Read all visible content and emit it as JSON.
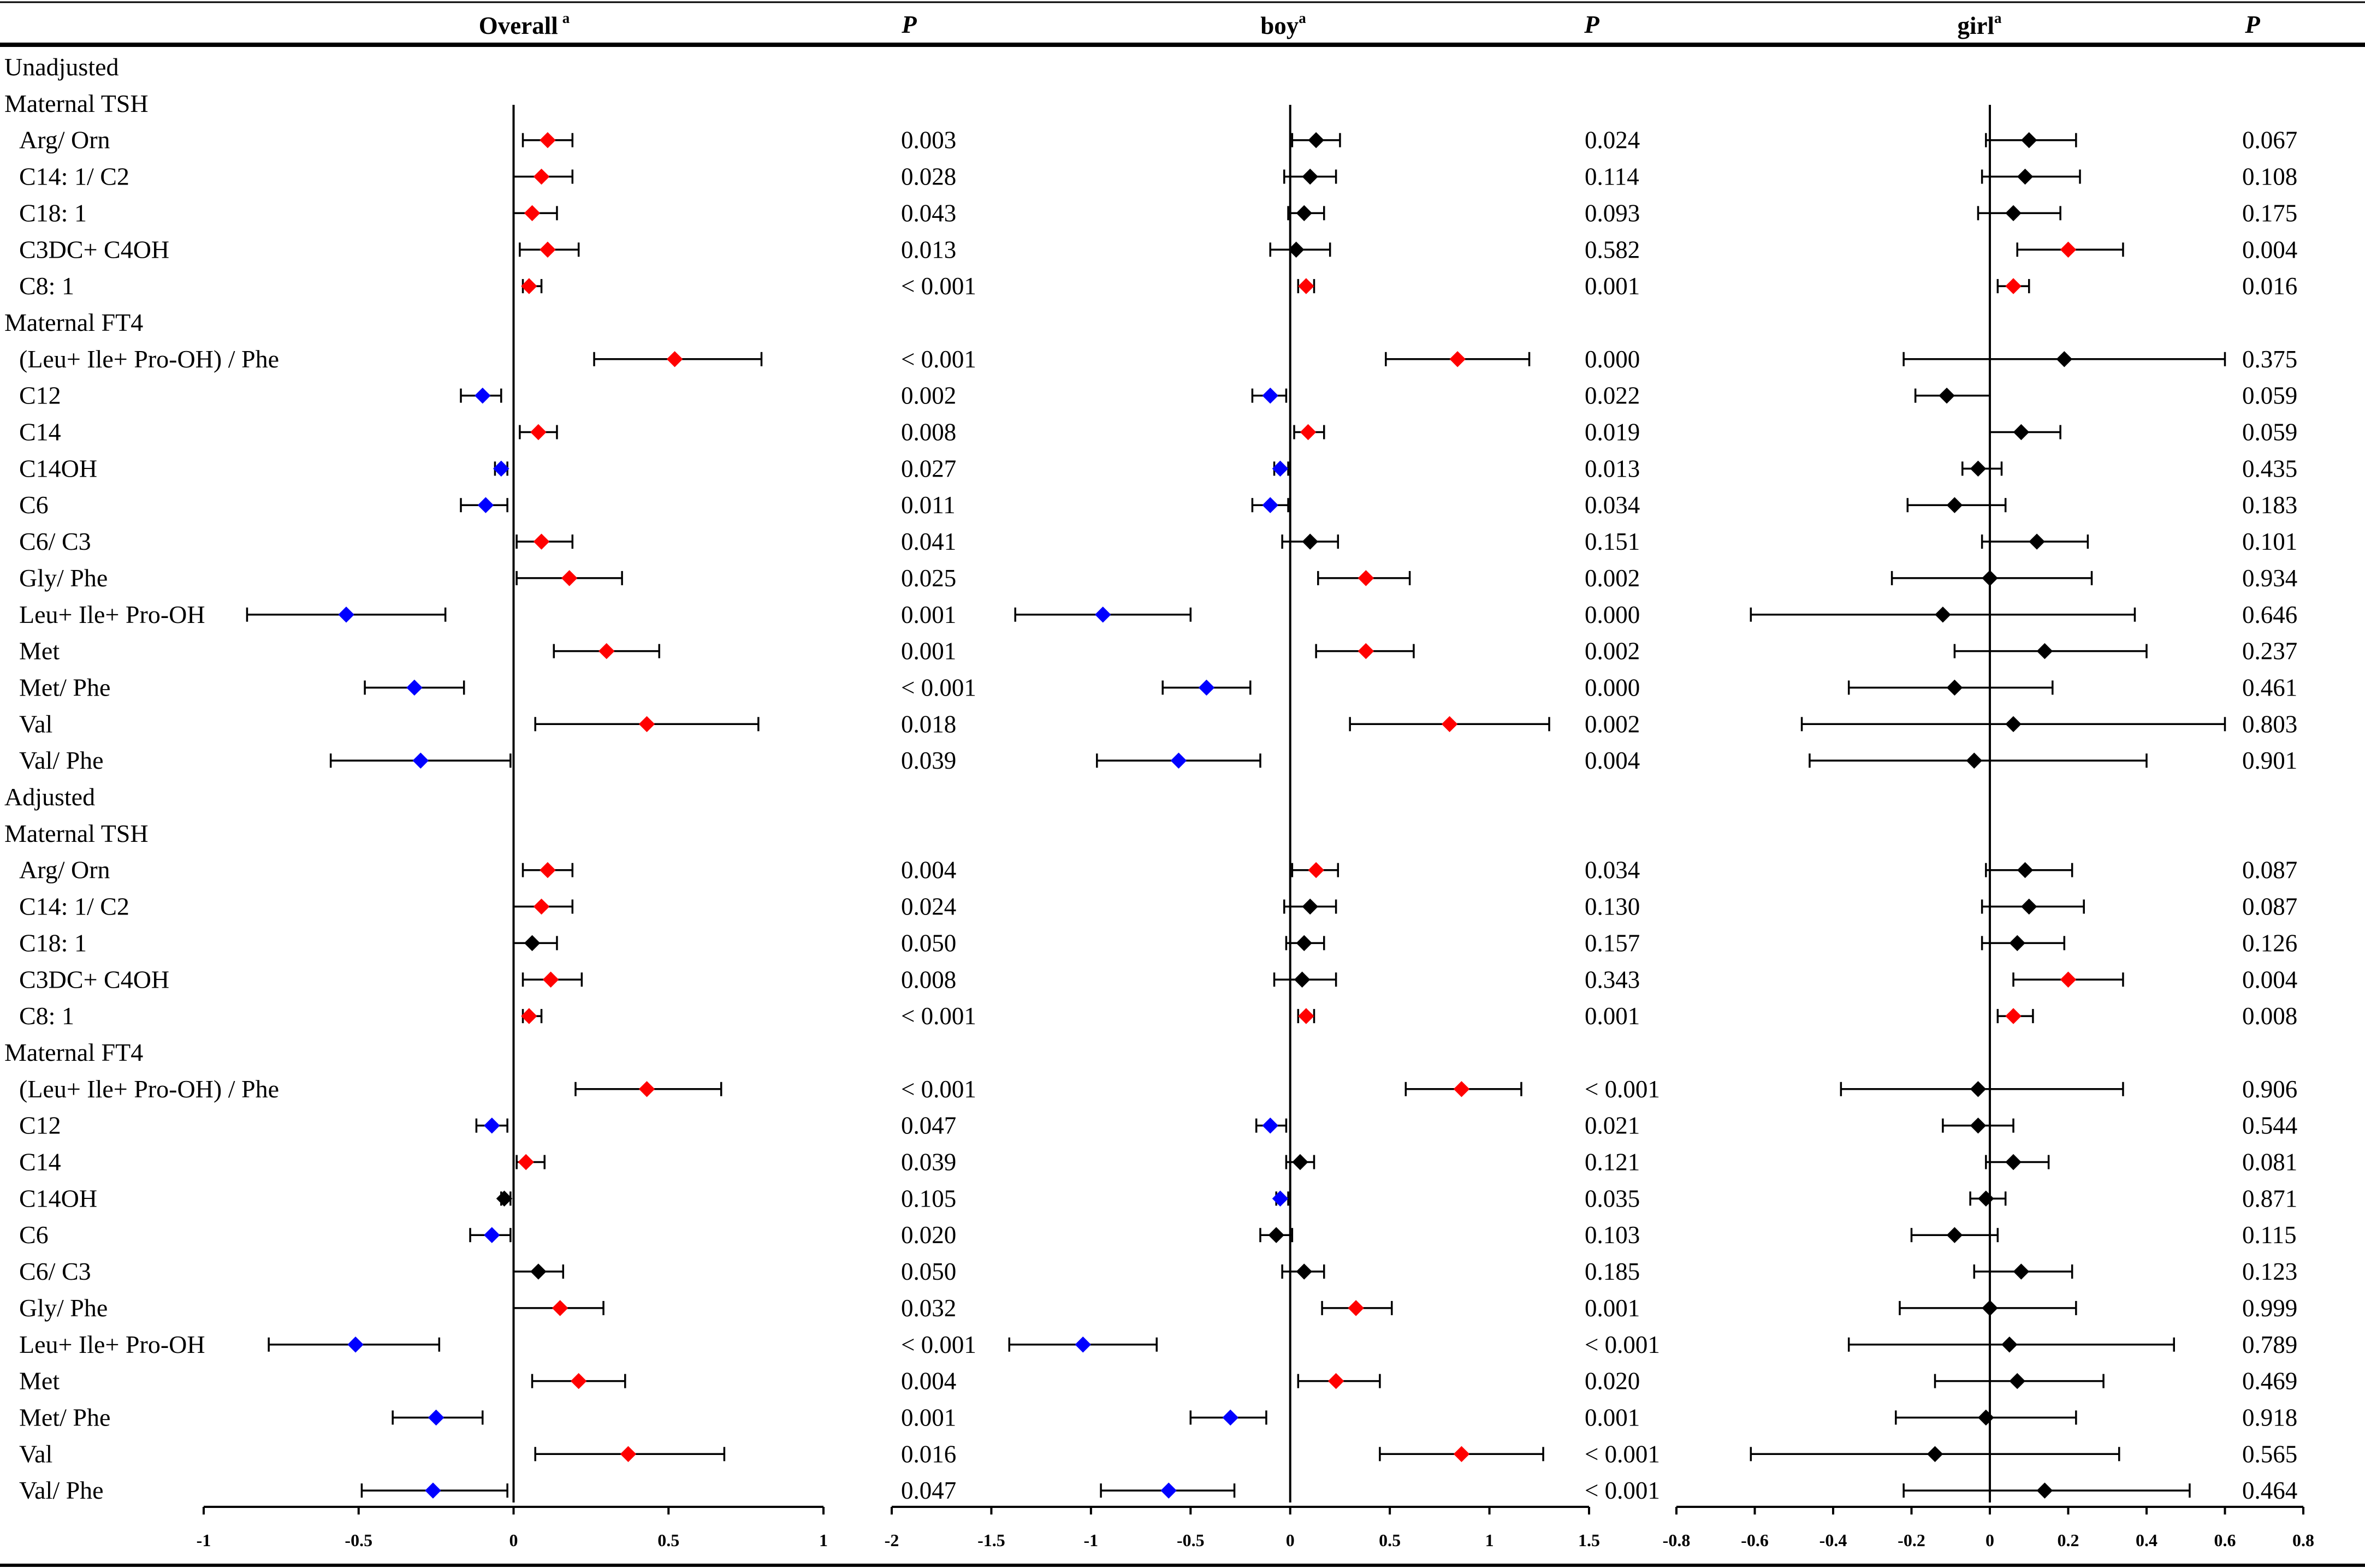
{
  "chart_data": {
    "type": "forest",
    "headers": {
      "overall": "Overall",
      "boy": "boy",
      "girl": "girl",
      "superscript": "a",
      "p": "P"
    },
    "colors": {
      "positive": "#ff0000",
      "negative": "#0000ff",
      "nonsignificant": "#000000"
    },
    "panels": [
      {
        "name": "Overall",
        "xlim": [
          -1,
          1
        ],
        "ticks": [
          -1,
          -0.5,
          0,
          0.5,
          1
        ],
        "tick_labels": [
          "-1",
          "-0.5",
          "0",
          "0.5",
          "1"
        ]
      },
      {
        "name": "boy",
        "xlim": [
          -2,
          1.5
        ],
        "ticks": [
          -2,
          -1.5,
          -1,
          -0.5,
          0,
          0.5,
          1,
          1.5
        ],
        "tick_labels": [
          "-2",
          "-1.5",
          "-1",
          "-0.5",
          "0",
          "0.5",
          "1",
          "1.5"
        ]
      },
      {
        "name": "girl",
        "xlim": [
          -0.8,
          0.8
        ],
        "ticks": [
          -0.8,
          -0.6,
          -0.4,
          -0.2,
          0,
          0.2,
          0.4,
          0.6,
          0.8
        ],
        "tick_labels": [
          "-0.8",
          "-0.6",
          "-0.4",
          "-0.2",
          "0",
          "0.2",
          "0.4",
          "0.6",
          "0.8"
        ]
      }
    ],
    "rows": [
      {
        "label": "Unadjusted",
        "kind": "section"
      },
      {
        "label": "Maternal TSH",
        "kind": "group"
      },
      {
        "label": "Arg/ Orn",
        "kind": "item",
        "overall": [
          0.11,
          0.03,
          0.19,
          "r"
        ],
        "p_overall": "0.003",
        "boy": [
          0.13,
          0.01,
          0.25,
          "k"
        ],
        "p_boy": "0.024",
        "girl": [
          0.1,
          -0.01,
          0.22,
          "k"
        ],
        "p_girl": "0.067"
      },
      {
        "label": "C14: 1/ C2",
        "kind": "item",
        "overall": [
          0.09,
          0.0,
          0.19,
          "r"
        ],
        "p_overall": "0.028",
        "boy": [
          0.1,
          -0.03,
          0.23,
          "k"
        ],
        "p_boy": "0.114",
        "girl": [
          0.09,
          -0.02,
          0.23,
          "k"
        ],
        "p_girl": "0.108"
      },
      {
        "label": "C18: 1",
        "kind": "item",
        "overall": [
          0.06,
          0.0,
          0.14,
          "r"
        ],
        "p_overall": "0.043",
        "boy": [
          0.07,
          -0.01,
          0.17,
          "k"
        ],
        "p_boy": "0.093",
        "girl": [
          0.06,
          -0.03,
          0.18,
          "k"
        ],
        "p_girl": "0.175"
      },
      {
        "label": "C3DC+ C4OH",
        "kind": "item",
        "overall": [
          0.11,
          0.02,
          0.21,
          "r"
        ],
        "p_overall": "0.013",
        "boy": [
          0.03,
          -0.1,
          0.2,
          "k"
        ],
        "p_boy": "0.582",
        "girl": [
          0.2,
          0.07,
          0.34,
          "r"
        ],
        "p_girl": "0.004"
      },
      {
        "label": "C8: 1",
        "kind": "item",
        "overall": [
          0.05,
          0.03,
          0.09,
          "r"
        ],
        "p_overall": "< 0.001",
        "boy": [
          0.08,
          0.04,
          0.12,
          "r"
        ],
        "p_boy": "0.001",
        "girl": [
          0.06,
          0.02,
          0.1,
          "r"
        ],
        "p_girl": "0.016"
      },
      {
        "label": "Maternal FT4",
        "kind": "group"
      },
      {
        "label": "(Leu+ Ile+ Pro-OH) / Phe",
        "kind": "item",
        "overall": [
          0.52,
          0.26,
          0.8,
          "r"
        ],
        "p_overall": "< 0.001",
        "boy": [
          0.84,
          0.48,
          1.2,
          "r"
        ],
        "p_boy": "0.000",
        "girl": [
          0.19,
          -0.22,
          0.6,
          "k"
        ],
        "p_girl": "0.375"
      },
      {
        "label": "C12",
        "kind": "item",
        "overall": [
          -0.1,
          -0.17,
          -0.04,
          "b"
        ],
        "p_overall": "0.002",
        "boy": [
          -0.1,
          -0.19,
          -0.02,
          "b"
        ],
        "p_boy": "0.022",
        "girl": [
          -0.11,
          -0.19,
          0.0,
          "k"
        ],
        "p_girl": "0.059"
      },
      {
        "label": "C14",
        "kind": "item",
        "overall": [
          0.08,
          0.02,
          0.14,
          "r"
        ],
        "p_overall": "0.008",
        "boy": [
          0.09,
          0.02,
          0.17,
          "r"
        ],
        "p_boy": "0.019",
        "girl": [
          0.08,
          0.0,
          0.18,
          "k"
        ],
        "p_girl": "0.059"
      },
      {
        "label": "C14OH",
        "kind": "item",
        "overall": [
          -0.04,
          -0.06,
          -0.02,
          "b"
        ],
        "p_overall": "0.027",
        "boy": [
          -0.05,
          -0.08,
          -0.01,
          "b"
        ],
        "p_boy": "0.013",
        "girl": [
          -0.03,
          -0.07,
          0.03,
          "k"
        ],
        "p_girl": "0.435"
      },
      {
        "label": "C6",
        "kind": "item",
        "overall": [
          -0.09,
          -0.17,
          -0.02,
          "b"
        ],
        "p_overall": "0.011",
        "boy": [
          -0.1,
          -0.19,
          -0.01,
          "b"
        ],
        "p_boy": "0.034",
        "girl": [
          -0.09,
          -0.21,
          0.04,
          "k"
        ],
        "p_girl": "0.183"
      },
      {
        "label": "C6/ C3",
        "kind": "item",
        "overall": [
          0.09,
          0.01,
          0.19,
          "r"
        ],
        "p_overall": "0.041",
        "boy": [
          0.1,
          -0.04,
          0.24,
          "k"
        ],
        "p_boy": "0.151",
        "girl": [
          0.12,
          -0.02,
          0.25,
          "k"
        ],
        "p_girl": "0.101"
      },
      {
        "label": "Gly/ Phe",
        "kind": "item",
        "overall": [
          0.18,
          0.01,
          0.35,
          "r"
        ],
        "p_overall": "0.025",
        "boy": [
          0.38,
          0.14,
          0.6,
          "r"
        ],
        "p_boy": "0.002",
        "girl": [
          0.0,
          -0.25,
          0.26,
          "k"
        ],
        "p_girl": "0.934"
      },
      {
        "label": "Leu+ Ile+ Pro-OH",
        "kind": "item",
        "overall": [
          -0.54,
          -0.86,
          -0.22,
          "b"
        ],
        "p_overall": "0.001",
        "boy": [
          -0.94,
          -1.38,
          -0.5,
          "b"
        ],
        "p_boy": "0.000",
        "girl": [
          -0.12,
          -0.61,
          0.37,
          "k"
        ],
        "p_girl": "0.646"
      },
      {
        "label": "Met",
        "kind": "item",
        "overall": [
          0.3,
          0.13,
          0.47,
          "r"
        ],
        "p_overall": "0.001",
        "boy": [
          0.38,
          0.13,
          0.62,
          "r"
        ],
        "p_boy": "0.002",
        "girl": [
          0.14,
          -0.09,
          0.4,
          "k"
        ],
        "p_girl": "0.237"
      },
      {
        "label": "Met/ Phe",
        "kind": "item",
        "overall": [
          -0.32,
          -0.48,
          -0.16,
          "b"
        ],
        "p_overall": "< 0.001",
        "boy": [
          -0.42,
          -0.64,
          -0.2,
          "b"
        ],
        "p_boy": "0.000",
        "girl": [
          -0.09,
          -0.36,
          0.16,
          "k"
        ],
        "p_girl": "0.461"
      },
      {
        "label": "Val",
        "kind": "item",
        "overall": [
          0.43,
          0.07,
          0.79,
          "r"
        ],
        "p_overall": "0.018",
        "boy": [
          0.8,
          0.3,
          1.3,
          "r"
        ],
        "p_boy": "0.002",
        "girl": [
          0.06,
          -0.48,
          0.6,
          "k"
        ],
        "p_girl": "0.803"
      },
      {
        "label": "Val/ Phe",
        "kind": "item",
        "overall": [
          -0.3,
          -0.59,
          -0.01,
          "b"
        ],
        "p_overall": "0.039",
        "boy": [
          -0.56,
          -0.97,
          -0.15,
          "b"
        ],
        "p_boy": "0.004",
        "girl": [
          -0.04,
          -0.46,
          0.4,
          "k"
        ],
        "p_girl": "0.901"
      },
      {
        "label": "Adjusted",
        "kind": "section"
      },
      {
        "label": "Maternal TSH",
        "kind": "group"
      },
      {
        "label": "Arg/ Orn",
        "kind": "item",
        "overall": [
          0.11,
          0.03,
          0.19,
          "r"
        ],
        "p_overall": "0.004",
        "boy": [
          0.13,
          0.01,
          0.24,
          "r"
        ],
        "p_boy": "0.034",
        "girl": [
          0.09,
          -0.01,
          0.21,
          "k"
        ],
        "p_girl": "0.087"
      },
      {
        "label": "C14: 1/ C2",
        "kind": "item",
        "overall": [
          0.09,
          0.0,
          0.19,
          "r"
        ],
        "p_overall": "0.024",
        "boy": [
          0.1,
          -0.03,
          0.23,
          "k"
        ],
        "p_boy": "0.130",
        "girl": [
          0.1,
          -0.02,
          0.24,
          "k"
        ],
        "p_girl": "0.087"
      },
      {
        "label": "C18: 1",
        "kind": "item",
        "overall": [
          0.06,
          0.0,
          0.14,
          "k"
        ],
        "p_overall": "0.050",
        "boy": [
          0.07,
          -0.02,
          0.17,
          "k"
        ],
        "p_boy": "0.157",
        "girl": [
          0.07,
          -0.02,
          0.19,
          "k"
        ],
        "p_girl": "0.126"
      },
      {
        "label": "C3DC+ C4OH",
        "kind": "item",
        "overall": [
          0.12,
          0.03,
          0.22,
          "r"
        ],
        "p_overall": "0.008",
        "boy": [
          0.06,
          -0.08,
          0.23,
          "k"
        ],
        "p_boy": "0.343",
        "girl": [
          0.2,
          0.06,
          0.34,
          "r"
        ],
        "p_girl": "0.004"
      },
      {
        "label": "C8: 1",
        "kind": "item",
        "overall": [
          0.05,
          0.03,
          0.09,
          "r"
        ],
        "p_overall": "< 0.001",
        "boy": [
          0.08,
          0.04,
          0.12,
          "r"
        ],
        "p_boy": "0.001",
        "girl": [
          0.06,
          0.02,
          0.11,
          "r"
        ],
        "p_girl": "0.008"
      },
      {
        "label": "Maternal FT4",
        "kind": "group"
      },
      {
        "label": "(Leu+ Ile+ Pro-OH) / Phe",
        "kind": "item",
        "overall": [
          0.43,
          0.2,
          0.67,
          "r"
        ],
        "p_overall": "< 0.001",
        "boy": [
          0.86,
          0.58,
          1.16,
          "r"
        ],
        "p_boy": "< 0.001",
        "girl": [
          -0.03,
          -0.38,
          0.34,
          "k"
        ],
        "p_girl": "0.906"
      },
      {
        "label": "C12",
        "kind": "item",
        "overall": [
          -0.07,
          -0.12,
          -0.02,
          "b"
        ],
        "p_overall": "0.047",
        "boy": [
          -0.1,
          -0.17,
          -0.02,
          "b"
        ],
        "p_boy": "0.021",
        "girl": [
          -0.03,
          -0.12,
          0.06,
          "k"
        ],
        "p_girl": "0.544"
      },
      {
        "label": "C14",
        "kind": "item",
        "overall": [
          0.04,
          0.01,
          0.1,
          "r"
        ],
        "p_overall": "0.039",
        "boy": [
          0.05,
          -0.02,
          0.12,
          "k"
        ],
        "p_boy": "0.121",
        "girl": [
          0.06,
          -0.01,
          0.15,
          "k"
        ],
        "p_girl": "0.081"
      },
      {
        "label": "C14OH",
        "kind": "item",
        "overall": [
          -0.03,
          -0.04,
          -0.01,
          "k"
        ],
        "p_overall": "0.105",
        "boy": [
          -0.05,
          -0.07,
          -0.01,
          "b"
        ],
        "p_boy": "0.035",
        "girl": [
          -0.01,
          -0.05,
          0.04,
          "k"
        ],
        "p_girl": "0.871"
      },
      {
        "label": "C6",
        "kind": "item",
        "overall": [
          -0.07,
          -0.14,
          -0.01,
          "b"
        ],
        "p_overall": "0.020",
        "boy": [
          -0.07,
          -0.15,
          0.01,
          "k"
        ],
        "p_boy": "0.103",
        "girl": [
          -0.09,
          -0.2,
          0.02,
          "k"
        ],
        "p_girl": "0.115"
      },
      {
        "label": "C6/ C3",
        "kind": "item",
        "overall": [
          0.08,
          0.0,
          0.16,
          "k"
        ],
        "p_overall": "0.050",
        "boy": [
          0.07,
          -0.04,
          0.17,
          "k"
        ],
        "p_boy": "0.185",
        "girl": [
          0.08,
          -0.04,
          0.21,
          "k"
        ],
        "p_girl": "0.123"
      },
      {
        "label": "Gly/ Phe",
        "kind": "item",
        "overall": [
          0.15,
          0.0,
          0.29,
          "r"
        ],
        "p_overall": "0.032",
        "boy": [
          0.33,
          0.16,
          0.51,
          "r"
        ],
        "p_boy": "0.001",
        "girl": [
          0.0,
          -0.23,
          0.22,
          "k"
        ],
        "p_girl": "0.999"
      },
      {
        "label": "Leu+ Ile+ Pro-OH",
        "kind": "item",
        "overall": [
          -0.51,
          -0.79,
          -0.24,
          "b"
        ],
        "p_overall": "< 0.001",
        "boy": [
          -1.04,
          -1.41,
          -0.67,
          "b"
        ],
        "p_boy": "< 0.001",
        "girl": [
          0.05,
          -0.36,
          0.47,
          "k"
        ],
        "p_girl": "0.789"
      },
      {
        "label": "Met",
        "kind": "item",
        "overall": [
          0.21,
          0.06,
          0.36,
          "r"
        ],
        "p_overall": "0.004",
        "boy": [
          0.23,
          0.04,
          0.45,
          "r"
        ],
        "p_boy": "0.020",
        "girl": [
          0.07,
          -0.14,
          0.29,
          "k"
        ],
        "p_girl": "0.469"
      },
      {
        "label": "Met/ Phe",
        "kind": "item",
        "overall": [
          -0.25,
          -0.39,
          -0.1,
          "b"
        ],
        "p_overall": "0.001",
        "boy": [
          -0.3,
          -0.5,
          -0.12,
          "b"
        ],
        "p_boy": "0.001",
        "girl": [
          -0.01,
          -0.24,
          0.22,
          "k"
        ],
        "p_girl": "0.918"
      },
      {
        "label": "Val",
        "kind": "item",
        "overall": [
          0.37,
          0.07,
          0.68,
          "r"
        ],
        "p_overall": "0.016",
        "boy": [
          0.86,
          0.45,
          1.27,
          "r"
        ],
        "p_boy": "< 0.001",
        "girl": [
          -0.14,
          -0.61,
          0.33,
          "k"
        ],
        "p_girl": "0.565"
      },
      {
        "label": "Val/ Phe",
        "kind": "item",
        "overall": [
          -0.26,
          -0.49,
          -0.02,
          "b"
        ],
        "p_overall": "0.047",
        "boy": [
          -0.61,
          -0.95,
          -0.28,
          "b"
        ],
        "p_boy": "< 0.001",
        "girl": [
          0.14,
          -0.22,
          0.51,
          "k"
        ],
        "p_girl": "0.464"
      }
    ]
  }
}
